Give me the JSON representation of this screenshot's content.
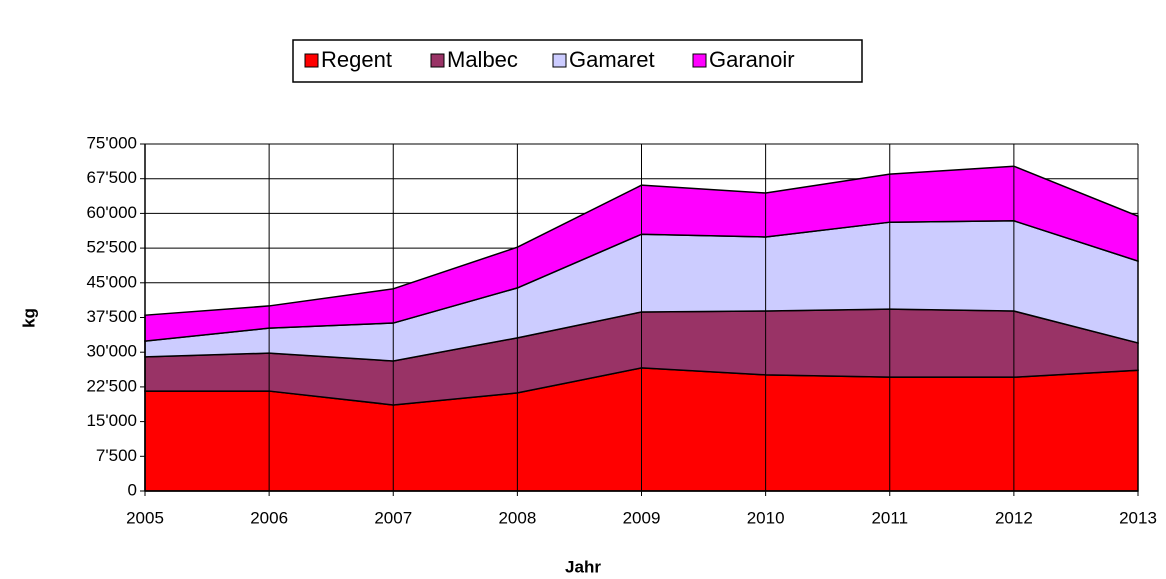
{
  "chart_data": {
    "type": "stacked_area",
    "x": [
      2005,
      2006,
      2007,
      2008,
      2009,
      2010,
      2011,
      2012,
      2013
    ],
    "series": [
      {
        "name": "Regent",
        "color": "#ff0000",
        "values": [
          21600,
          21600,
          18600,
          21200,
          26600,
          25100,
          24600,
          24600,
          26100
        ]
      },
      {
        "name": "Malbec",
        "color": "#993366",
        "values": [
          7400,
          8200,
          9500,
          11900,
          12100,
          13800,
          14700,
          14300,
          5900
        ]
      },
      {
        "name": "Gamaret",
        "color": "#ccccff",
        "values": [
          3400,
          5400,
          8200,
          10800,
          16800,
          16000,
          18800,
          19500,
          17700
        ]
      },
      {
        "name": "Garanoir",
        "color": "#ff00ff",
        "values": [
          5600,
          4800,
          7400,
          8800,
          10600,
          9500,
          10400,
          11800,
          9700
        ]
      }
    ],
    "xlim": [
      2005,
      2013
    ],
    "xticks": [
      2005,
      2006,
      2007,
      2008,
      2009,
      2010,
      2011,
      2012,
      2013
    ],
    "ylim": [
      0,
      75000
    ],
    "yticks": [
      0,
      {
        "value": 7500,
        "label": "7'500"
      },
      {
        "value": 15000,
        "label": "15'000"
      },
      {
        "value": 22500,
        "label": "22'500"
      },
      {
        "value": 30000,
        "label": "30'000"
      },
      {
        "value": 37500,
        "label": "37'500"
      },
      {
        "value": 45000,
        "label": "45'000"
      },
      {
        "value": 52500,
        "label": "52'500"
      },
      {
        "value": 60000,
        "label": "60'000"
      },
      {
        "value": 67500,
        "label": "67'500"
      },
      {
        "value": 75000,
        "label": "75'000"
      }
    ],
    "xlabel": "Jahr",
    "ylabel": "kg",
    "grid": true,
    "legend": "top"
  }
}
